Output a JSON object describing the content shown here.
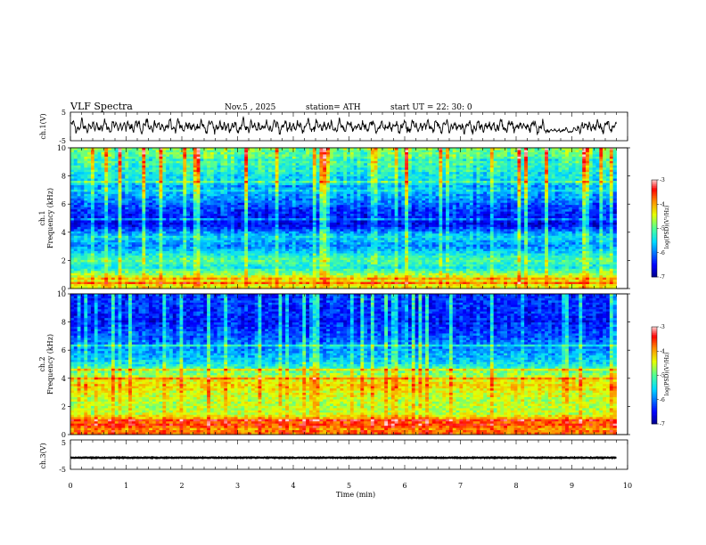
{
  "header": {
    "title": "VLF  Spectra",
    "date": "Nov.5  , 2025",
    "station": "station= ATH",
    "start_ut": "start  UT  =   22: 30: 0"
  },
  "chart_data": [
    {
      "id": "ch1",
      "type": "line",
      "ylabel": "ch.1(V)",
      "ylim": [
        -5,
        5
      ],
      "ytick_labels": [
        "5",
        "-5"
      ],
      "xlim": [
        0,
        10
      ],
      "data_range_min": [
        0,
        9.8
      ],
      "description_series": "broadband waveform, roughly -3 to 3 V"
    },
    {
      "id": "ch1-spectrogram",
      "type": "heatmap",
      "ylabel": "Frequency  (kHz)",
      "channel_label": "ch.1",
      "ylim": [
        0,
        10
      ],
      "ytick_labels": [
        "10",
        "8",
        "6",
        "4",
        "2",
        "0"
      ],
      "xlim": [
        0,
        10
      ],
      "colorbar": {
        "title": "log(PSD)(V²/Hz)",
        "range": [
          -7,
          -3
        ],
        "tick_labels": [
          "-3",
          "-4",
          "-5",
          "-6",
          "-7"
        ]
      },
      "level_profile_kHz_vs_logPSD": [
        [
          0.3,
          -4.3
        ],
        [
          0.8,
          -4.4
        ],
        [
          1.5,
          -5.4
        ],
        [
          2.0,
          -5.0
        ],
        [
          3.0,
          -5.9
        ],
        [
          3.7,
          -5.5
        ],
        [
          4.5,
          -6.5
        ],
        [
          5.5,
          -6.3
        ],
        [
          6.5,
          -5.8
        ],
        [
          8.0,
          -5.4
        ],
        [
          9.5,
          -4.9
        ]
      ]
    },
    {
      "id": "ch2-spectrogram",
      "type": "heatmap",
      "ylabel": "Frequency  (kHz)",
      "channel_label": "ch.2",
      "ylim": [
        0,
        10
      ],
      "ytick_labels": [
        "10",
        "8",
        "6",
        "4",
        "2",
        "0"
      ],
      "xlim": [
        0,
        10
      ],
      "colorbar": {
        "title": "log(PSD)(V²/Hz)",
        "range": [
          -7,
          -3
        ],
        "tick_labels": [
          "-3",
          "-4",
          "-5",
          "-6",
          "-7"
        ]
      },
      "level_profile_kHz_vs_logPSD": [
        [
          0.3,
          -3.8
        ],
        [
          0.9,
          -3.7
        ],
        [
          1.5,
          -4.6
        ],
        [
          2.5,
          -4.6
        ],
        [
          3.5,
          -4.2
        ],
        [
          4.5,
          -4.9
        ],
        [
          5.2,
          -5.6
        ],
        [
          6.5,
          -6.0
        ],
        [
          8.0,
          -6.4
        ],
        [
          9.5,
          -6.3
        ]
      ]
    },
    {
      "id": "ch3",
      "type": "line",
      "ylabel": "ch.3(V)",
      "ylim": [
        -5,
        5
      ],
      "ytick_labels": [
        "5",
        "-5"
      ],
      "xlim": [
        0,
        10
      ],
      "xlabel": "Time  (min)",
      "xtick_labels": [
        "0",
        "1",
        "2",
        "3",
        "4",
        "5",
        "6",
        "7",
        "8",
        "9",
        "10"
      ],
      "description_series": "nearly constant level around -1 V"
    }
  ]
}
